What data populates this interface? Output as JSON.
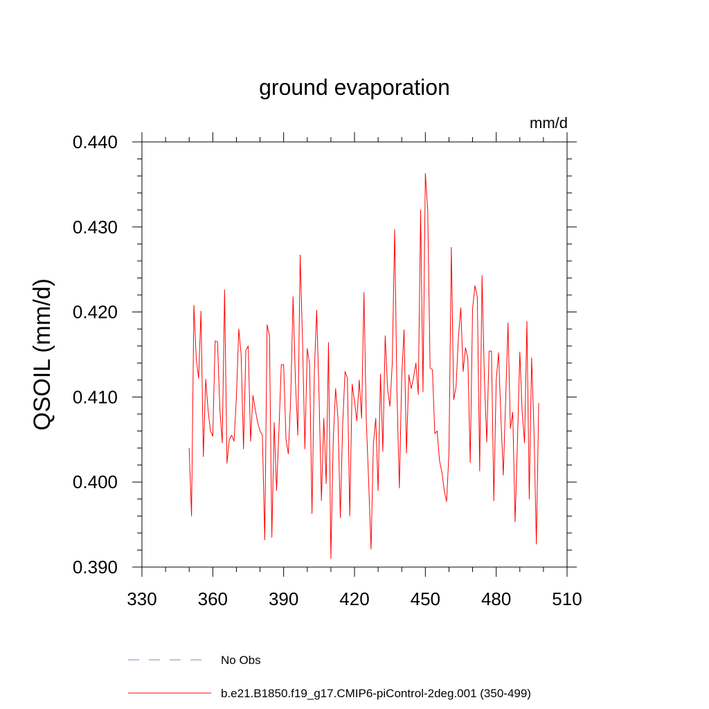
{
  "chart_data": {
    "type": "line",
    "title": "ground evaporation",
    "units": "mm/d",
    "ylabel": "QSOIL  (mm/d)",
    "xlim": [
      330,
      510
    ],
    "ylim": [
      0.39,
      0.44
    ],
    "x_ticks": [
      330,
      360,
      390,
      420,
      450,
      480,
      510
    ],
    "y_ticks": [
      0.39,
      0.4,
      0.41,
      0.42,
      0.43,
      0.44
    ],
    "x_tick_labels": [
      "330",
      "360",
      "390",
      "420",
      "450",
      "480",
      "510"
    ],
    "y_tick_labels": [
      "0.390",
      "0.400",
      "0.410",
      "0.420",
      "0.430",
      "0.440"
    ],
    "legend": [
      {
        "label": "No Obs",
        "color": "#8080c0",
        "style": "dashed"
      },
      {
        "label": "b.e21.B1850.f19_g17.CMIP6-piControl-2deg.001 (350-499)",
        "color": "#ff0000",
        "style": "solid"
      }
    ],
    "series": [
      {
        "color": "#ff0000",
        "x_start": 350,
        "x_step": 1,
        "values": [
          0.404,
          0.396,
          0.4208,
          0.4145,
          0.4122,
          0.4201,
          0.403,
          0.4121,
          0.4085,
          0.406,
          0.4054,
          0.4166,
          0.4165,
          0.4085,
          0.4046,
          0.4226,
          0.4022,
          0.405,
          0.4055,
          0.4048,
          0.41,
          0.418,
          0.415,
          0.4039,
          0.4155,
          0.416,
          0.4048,
          0.4102,
          0.4085,
          0.407,
          0.406,
          0.4055,
          0.3932,
          0.4185,
          0.4172,
          0.3935,
          0.407,
          0.399,
          0.406,
          0.4138,
          0.4138,
          0.405,
          0.4033,
          0.41,
          0.4218,
          0.4118,
          0.4055,
          0.4267,
          0.4165,
          0.4039,
          0.4157,
          0.4138,
          0.3963,
          0.413,
          0.4202,
          0.41,
          0.3978,
          0.4075,
          0.3998,
          0.4164,
          0.391,
          0.4049,
          0.411,
          0.4075,
          0.3958,
          0.4068,
          0.413,
          0.4122,
          0.396,
          0.4115,
          0.4095,
          0.4072,
          0.412,
          0.4075,
          0.4223,
          0.4072,
          0.4,
          0.3921,
          0.4045,
          0.4075,
          0.399,
          0.4127,
          0.4036,
          0.4172,
          0.411,
          0.4089,
          0.414,
          0.4297,
          0.4102,
          0.3993,
          0.4124,
          0.4179,
          0.4034,
          0.4126,
          0.411,
          0.4123,
          0.414,
          0.4103,
          0.432,
          0.4106,
          0.4363,
          0.432,
          0.4134,
          0.4132,
          0.4057,
          0.406,
          0.4025,
          0.4012,
          0.399,
          0.3977,
          0.4035,
          0.4276,
          0.4097,
          0.4112,
          0.417,
          0.4205,
          0.413,
          0.4158,
          0.4145,
          0.4023,
          0.4204,
          0.4231,
          0.4218,
          0.4013,
          0.4243,
          0.4122,
          0.4047,
          0.4154,
          0.4154,
          0.3978,
          0.412,
          0.4152,
          0.4075,
          0.4008,
          0.4097,
          0.4187,
          0.4063,
          0.4082,
          0.3953,
          0.4048,
          0.4153,
          0.4082,
          0.4046,
          0.4189,
          0.398,
          0.4146,
          0.406,
          0.3927,
          0.4093
        ]
      }
    ]
  }
}
